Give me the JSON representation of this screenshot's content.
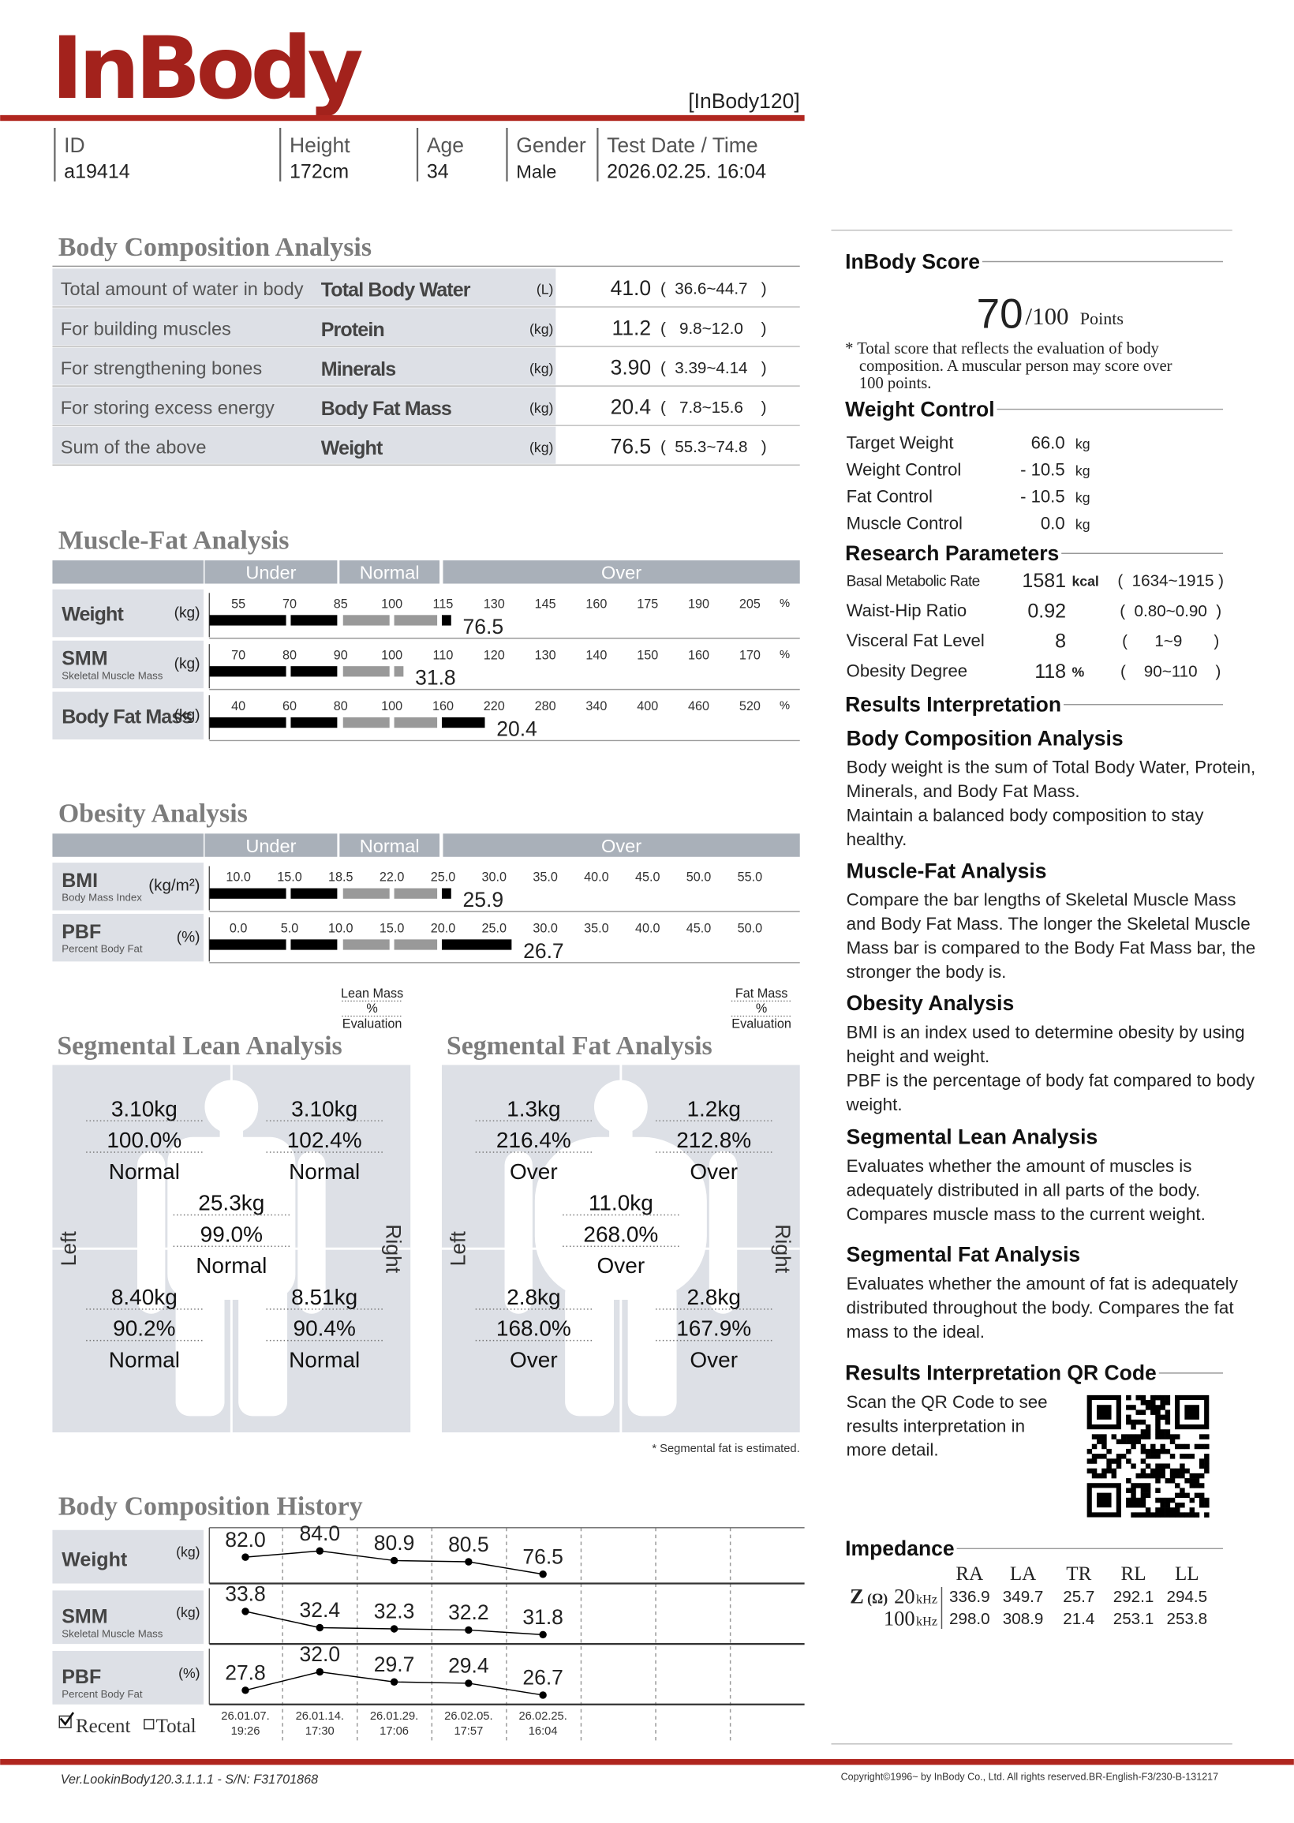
{
  "header": {
    "logo": "InBody",
    "model": "[InBody120]"
  },
  "profile": [
    {
      "label": "ID",
      "value": "a19414"
    },
    {
      "label": "Height",
      "value": "172cm"
    },
    {
      "label": "Age",
      "value": "34"
    },
    {
      "label": "Gender",
      "value": "Male"
    },
    {
      "label": "Test Date / Time",
      "value": "2026.02.25. 16:04"
    }
  ],
  "body_composition": {
    "title": "Body Composition Analysis",
    "rows": [
      {
        "description": "Total amount of water in body",
        "name": "Total Body Water",
        "unit": "(L)",
        "value": "41.0",
        "range": "(  36.6~44.7   )"
      },
      {
        "description": "For building muscles",
        "name": "Protein",
        "unit": "(kg)",
        "value": "11.2",
        "range": "(   9.8~12.0    )"
      },
      {
        "description": "For strengthening bones",
        "name": "Minerals",
        "unit": "(kg)",
        "value": "3.90",
        "range": "(  3.39~4.14   )"
      },
      {
        "description": "For storing excess energy",
        "name": "Body Fat Mass",
        "unit": "(kg)",
        "value": "20.4",
        "range": "(   7.8~15.6    )"
      },
      {
        "description": "Sum of the above",
        "name": "Weight",
        "unit": "(kg)",
        "value": "76.5",
        "range": "(  55.3~74.8   )"
      }
    ]
  },
  "muscle_fat": {
    "title": "Muscle-Fat Analysis",
    "zones": [
      "Under",
      "Normal",
      "Over"
    ],
    "rows": [
      {
        "name": "Weight",
        "unit": "(kg)",
        "ticks": [
          "55",
          "70",
          "85",
          "100",
          "115",
          "130",
          "145",
          "160",
          "175",
          "190",
          "205"
        ],
        "tick_unit": "%",
        "value": "76.5"
      },
      {
        "name": "SMM",
        "subtitle": "Skeletal Muscle Mass",
        "unit": "(kg)",
        "ticks": [
          "70",
          "80",
          "90",
          "100",
          "110",
          "120",
          "130",
          "140",
          "150",
          "160",
          "170"
        ],
        "tick_unit": "%",
        "value": "31.8"
      },
      {
        "name": "Body Fat Mass",
        "unit": "(kg)",
        "ticks": [
          "40",
          "60",
          "80",
          "100",
          "160",
          "220",
          "280",
          "340",
          "400",
          "460",
          "520"
        ],
        "tick_unit": "%",
        "value": "20.4"
      }
    ]
  },
  "obesity": {
    "title": "Obesity Analysis",
    "zones": [
      "Under",
      "Normal",
      "Over"
    ],
    "rows": [
      {
        "name": "BMI",
        "subtitle": "Body Mass Index",
        "unit": "(kg/m²)",
        "ticks": [
          "10.0",
          "15.0",
          "18.5",
          "22.0",
          "25.0",
          "30.0",
          "35.0",
          "40.0",
          "45.0",
          "50.0",
          "55.0"
        ],
        "value": "25.9"
      },
      {
        "name": "PBF",
        "subtitle": "Percent Body Fat",
        "unit": "(%)",
        "ticks": [
          "0.0",
          "5.0",
          "10.0",
          "15.0",
          "20.0",
          "25.0",
          "30.0",
          "35.0",
          "40.0",
          "45.0",
          "50.0"
        ],
        "value": "26.7"
      }
    ]
  },
  "segmental_lean": {
    "title": "Segmental Lean Analysis",
    "legend": [
      "Lean Mass",
      "%",
      "Evaluation"
    ],
    "left": "Left",
    "right": "Right",
    "segments": [
      [
        "3.10kg",
        "100.0%",
        "Normal"
      ],
      [
        "3.10kg",
        "102.4%",
        "Normal"
      ],
      [
        "25.3kg",
        "99.0%",
        "Normal"
      ],
      [
        "8.40kg",
        "90.2%",
        "Normal"
      ],
      [
        "8.51kg",
        "90.4%",
        "Normal"
      ]
    ]
  },
  "segmental_fat": {
    "title": "Segmental Fat Analysis",
    "legend": [
      "Fat Mass",
      "%",
      "Evaluation"
    ],
    "left": "Left",
    "right": "Right",
    "segments": [
      [
        "1.3kg",
        "216.4%",
        "Over"
      ],
      [
        "1.2kg",
        "212.8%",
        "Over"
      ],
      [
        "11.0kg",
        "268.0%",
        "Over"
      ],
      [
        "2.8kg",
        "168.0%",
        "Over"
      ],
      [
        "2.8kg",
        "167.9%",
        "Over"
      ]
    ],
    "note": "* Segmental fat is estimated."
  },
  "history": {
    "title": "Body Composition History",
    "rows": [
      {
        "name": "Weight",
        "unit": "(kg)",
        "values": [
          "82.0",
          "84.0",
          "80.9",
          "80.5",
          "76.5"
        ]
      },
      {
        "name": "SMM",
        "subtitle": "Skeletal Muscle Mass",
        "unit": "(kg)",
        "values": [
          "33.8",
          "32.4",
          "32.3",
          "32.2",
          "31.8"
        ]
      },
      {
        "name": "PBF",
        "subtitle": "Percent Body Fat",
        "unit": "(%)",
        "values": [
          "27.8",
          "32.0",
          "29.7",
          "29.4",
          "26.7"
        ]
      }
    ],
    "dates": [
      [
        "26.01.07.",
        "19:26"
      ],
      [
        "26.01.14.",
        "17:30"
      ],
      [
        "26.01.29.",
        "17:06"
      ],
      [
        "26.02.05.",
        "17:57"
      ],
      [
        "26.02.25.",
        "16:04"
      ]
    ],
    "recent": "Recent",
    "total": "Total"
  },
  "inbody_score": {
    "title": "InBody Score",
    "score": "70",
    "max": "/100",
    "unit": "Points",
    "note": [
      "* Total score that reflects the evaluation of body",
      "composition. A muscular person may score over",
      "100 points."
    ]
  },
  "weight_control": {
    "title": "Weight Control",
    "rows": [
      {
        "label": "Target Weight",
        "value": "66.0",
        "unit": "kg"
      },
      {
        "label": "Weight Control",
        "value": "- 10.5",
        "unit": "kg"
      },
      {
        "label": "Fat Control",
        "value": "- 10.5",
        "unit": "kg"
      },
      {
        "label": "Muscle Control",
        "value": "0.0",
        "unit": "kg"
      }
    ]
  },
  "research": {
    "title": "Research Parameters",
    "rows": [
      {
        "label": "Basal Metabolic Rate",
        "value": "1581",
        "unit": "kcal",
        "range": "(  1634~1915 )"
      },
      {
        "label": "Waist-Hip Ratio",
        "value": "0.92",
        "range": "(  0.80~0.90  )"
      },
      {
        "label": "Visceral Fat Level",
        "value": "8",
        "range": "(      1~9       )"
      },
      {
        "label": "Obesity Degree",
        "value": "118",
        "unit": "%",
        "range": "(    90~110    )"
      }
    ]
  },
  "interpretation": {
    "title": "Results Interpretation",
    "sections": [
      {
        "heading": "Body Composition Analysis",
        "lines": [
          "Body weight is the sum of Total Body Water, Protein,",
          "Minerals, and Body Fat Mass.",
          "Maintain a balanced body composition to stay",
          "healthy."
        ]
      },
      {
        "heading": "Muscle-Fat Analysis",
        "lines": [
          "Compare the bar lengths of Skeletal Muscle Mass",
          "and Body Fat Mass. The longer the Skeletal Muscle",
          "Mass bar is compared to the Body Fat Mass bar, the",
          "stronger the body is."
        ]
      },
      {
        "heading": "Obesity Analysis",
        "lines": [
          "BMI is an index used to determine obesity by using",
          "height and weight.",
          "PBF is the percentage of body fat compared to body",
          "weight."
        ]
      },
      {
        "heading": "Segmental Lean Analysis",
        "lines": [
          "Evaluates whether the amount of muscles is",
          "adequately distributed in all parts of the body.",
          "Compares muscle mass to the current weight."
        ]
      },
      {
        "heading": "Segmental Fat Analysis",
        "lines": [
          "Evaluates whether the amount of fat is adequately",
          "distributed throughout the body. Compares the fat",
          "mass to the ideal."
        ]
      }
    ]
  },
  "qr": {
    "heading": "Results Interpretation QR Code",
    "lines": [
      "Scan the QR Code to see",
      "results interpretation in",
      "more detail."
    ]
  },
  "impedance": {
    "title": "Impedance",
    "columns": [
      "RA",
      "LA",
      "TR",
      "RL",
      "LL"
    ],
    "symbol": "Z",
    "symbol_unit": "(Ω)",
    "rows": [
      {
        "frequency": "20",
        "unit": "kHz",
        "values": [
          "336.9",
          "349.7",
          "25.7",
          "292.1",
          "294.5"
        ]
      },
      {
        "frequency": "100",
        "unit": "kHz",
        "values": [
          "298.0",
          "308.9",
          "21.4",
          "253.1",
          "253.8"
        ]
      }
    ]
  },
  "footer": {
    "version": "Ver.LookinBody120.3.1.1.1 - S/N: F31701868",
    "copyright": "Copyright©1996~ by InBody Co., Ltd. All rights reserved.BR-English-F3/230-B-131217"
  }
}
